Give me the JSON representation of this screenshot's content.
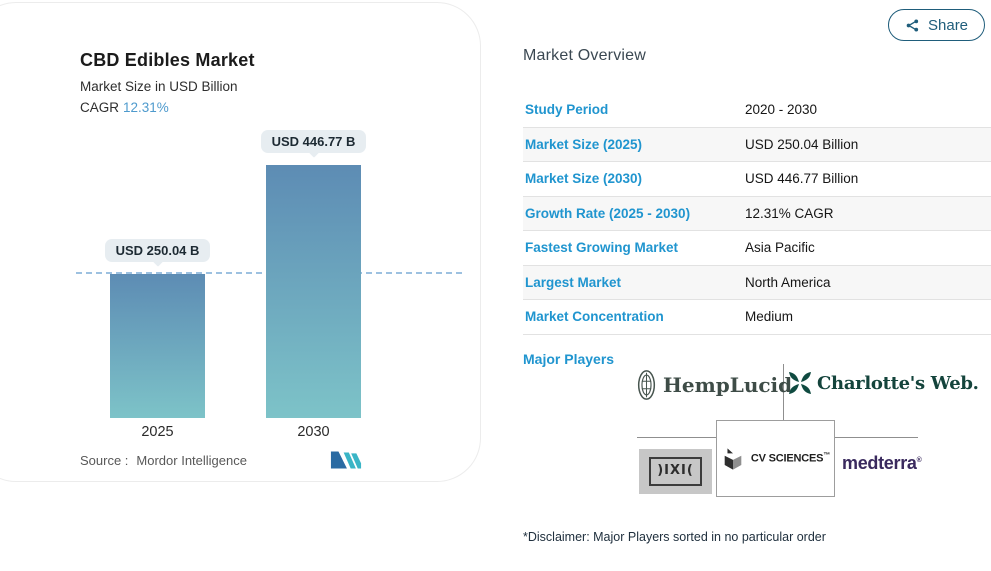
{
  "colors": {
    "accent_blue": "#2095cf",
    "cagr_blue": "#4e9acd",
    "share_teal": "#1f5d7b",
    "bar_gradient_top": "#5d8cb4",
    "bar_gradient_bottom": "#7dc3c8",
    "baseline_dash": "#9dc1e0",
    "value_label_bg": "#e7edf1"
  },
  "share_button": {
    "label": "Share"
  },
  "chart": {
    "title": "CBD Edibles Market",
    "subtitle": "Market Size in USD Billion",
    "cagr_label": "CAGR",
    "cagr_value": "12.31%",
    "source_label": "Source :",
    "source_value": "Mordor Intelligence"
  },
  "chart_data": {
    "type": "bar",
    "title": "CBD Edibles Market",
    "subtitle": "Market Size in USD Billion",
    "unit": "USD Billion",
    "categories": [
      "2025",
      "2030"
    ],
    "values": [
      250.04,
      446.77
    ],
    "bar_value_labels": [
      "USD 250.04 B",
      "USD 446.77 B"
    ],
    "cagr_percent": 12.31,
    "baseline": {
      "value": 250.04,
      "style": "dashed"
    },
    "ylim": [
      0,
      446.77
    ],
    "grid": false,
    "legend": false
  },
  "overview": {
    "title": "Market Overview",
    "rows": [
      {
        "label": "Study Period",
        "value": "2020 - 2030"
      },
      {
        "label": "Market Size (2025)",
        "value": "USD 250.04 Billion"
      },
      {
        "label": "Market Size (2030)",
        "value": "USD 446.77 Billion"
      },
      {
        "label": "Growth Rate (2025 - 2030)",
        "value": "12.31% CAGR"
      },
      {
        "label": "Fastest Growing Market",
        "value": "Asia Pacific"
      },
      {
        "label": "Largest Market",
        "value": "North America"
      },
      {
        "label": "Market Concentration",
        "value": "Medium"
      }
    ],
    "major_players_label": "Major Players",
    "players": [
      {
        "name": "HempLucid",
        "display": "HempLucid"
      },
      {
        "name": "Charlotte's Web",
        "display": "Charlotte's Web."
      },
      {
        "name": "DIXIE",
        "display": ")IXI("
      },
      {
        "name": "CV Sciences",
        "display": "CV SCIENCES",
        "tm": "™"
      },
      {
        "name": "Medterra",
        "display": "medterra",
        "tm": "®"
      }
    ],
    "disclaimer": "*Disclaimer: Major Players sorted in no particular order"
  }
}
